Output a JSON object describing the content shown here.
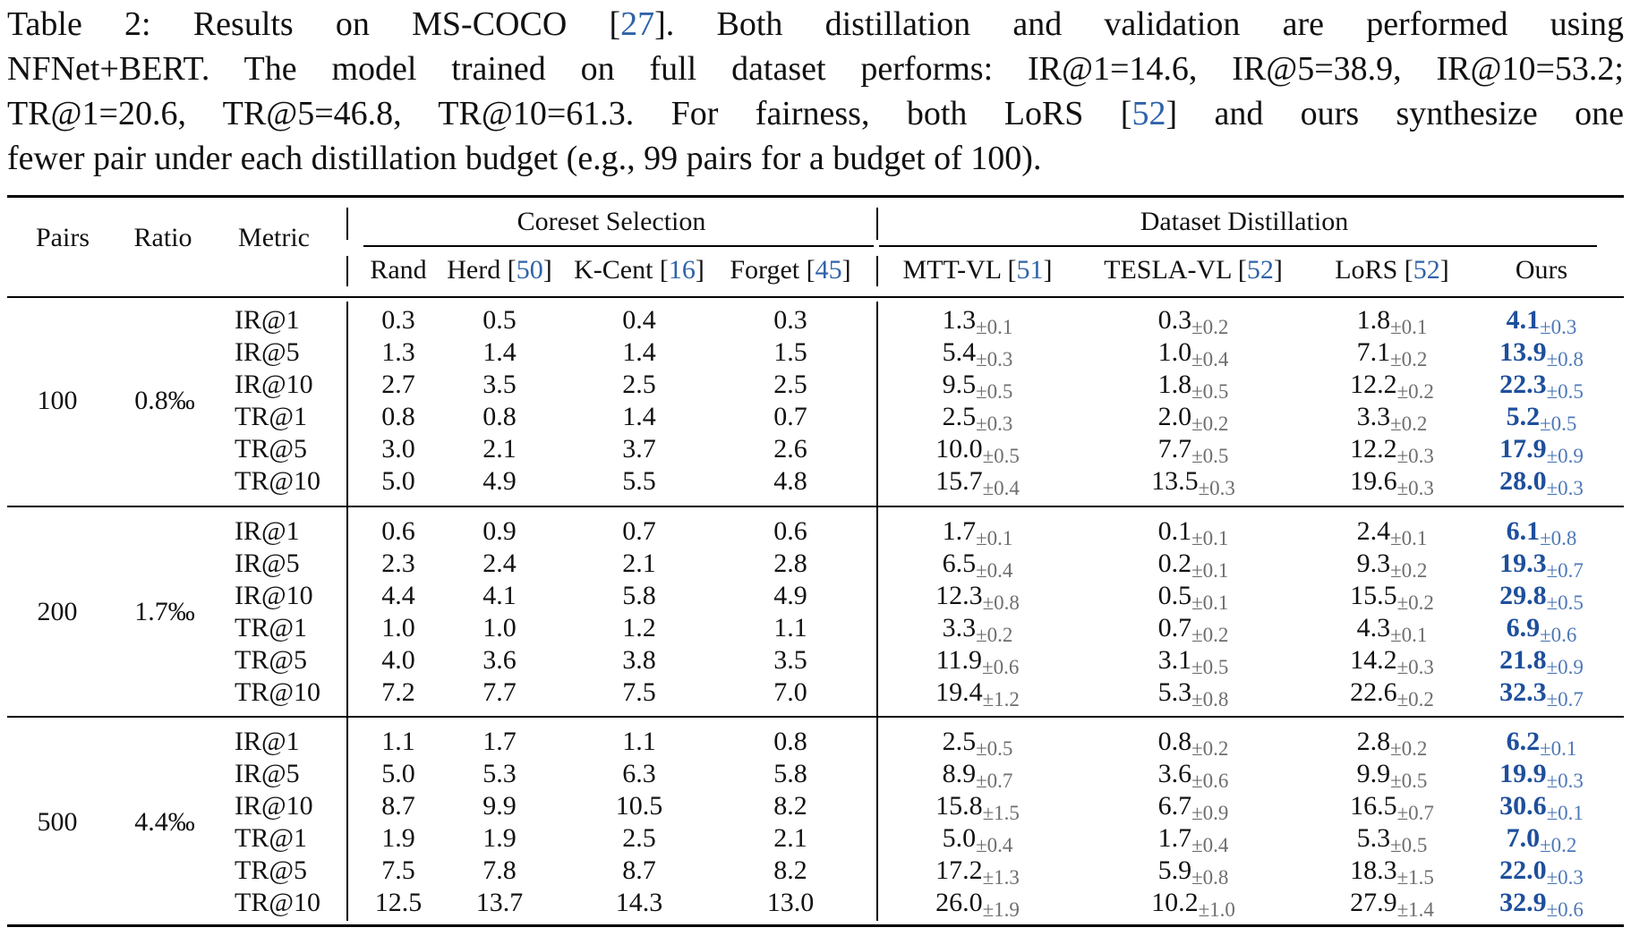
{
  "caption": {
    "line1": {
      "pre": "Table 2:  Results on MS-COCO [",
      "ref": "27",
      "post": "].  Both distillation and validation are performed using"
    },
    "line2": "NFNet+BERT. The model trained on full dataset performs: IR@1=14.6, IR@5=38.9, IR@10=53.2;",
    "line3": {
      "pre": "TR@1=20.6, TR@5=46.8, TR@10=61.3.  For fairness, both LoRS [",
      "ref": "52",
      "post": "] and ours synthesize one"
    },
    "line4": "fewer pair under each distillation budget (e.g., 99 pairs for a budget of 100)."
  },
  "headers": {
    "pairs": "Pairs",
    "ratio": "Ratio",
    "metric": "Metric",
    "coreset_group": "Coreset Selection",
    "distill_group": "Dataset Distillation",
    "columns": [
      {
        "name": "Rand",
        "ref": ""
      },
      {
        "name": "Herd ",
        "ref": "50"
      },
      {
        "name": "K-Cent ",
        "ref": "16"
      },
      {
        "name": "Forget ",
        "ref": "45"
      },
      {
        "name": "MTT-VL ",
        "ref": "51"
      },
      {
        "name": "TESLA-VL ",
        "ref": "52"
      },
      {
        "name": "LoRS ",
        "ref": "52"
      },
      {
        "name": "Ours",
        "ref": ""
      }
    ]
  },
  "groups": [
    {
      "pairs": "100",
      "ratio": "0.8‰",
      "rows": [
        {
          "metric": "IR@1",
          "rand": "0.3",
          "herd": "0.5",
          "kcent": "0.4",
          "forget": "0.3",
          "mtt": "1.3",
          "mtt_pm": "±0.1",
          "tesla": "0.3",
          "tesla_pm": "±0.2",
          "lors": "1.8",
          "lors_pm": "±0.1",
          "ours": "4.1",
          "ours_pm": "±0.3"
        },
        {
          "metric": "IR@5",
          "rand": "1.3",
          "herd": "1.4",
          "kcent": "1.4",
          "forget": "1.5",
          "mtt": "5.4",
          "mtt_pm": "±0.3",
          "tesla": "1.0",
          "tesla_pm": "±0.4",
          "lors": "7.1",
          "lors_pm": "±0.2",
          "ours": "13.9",
          "ours_pm": "±0.8"
        },
        {
          "metric": "IR@10",
          "rand": "2.7",
          "herd": "3.5",
          "kcent": "2.5",
          "forget": "2.5",
          "mtt": "9.5",
          "mtt_pm": "±0.5",
          "tesla": "1.8",
          "tesla_pm": "±0.5",
          "lors": "12.2",
          "lors_pm": "±0.2",
          "ours": "22.3",
          "ours_pm": "±0.5"
        },
        {
          "metric": "TR@1",
          "rand": "0.8",
          "herd": "0.8",
          "kcent": "1.4",
          "forget": "0.7",
          "mtt": "2.5",
          "mtt_pm": "±0.3",
          "tesla": "2.0",
          "tesla_pm": "±0.2",
          "lors": "3.3",
          "lors_pm": "±0.2",
          "ours": "5.2",
          "ours_pm": "±0.5"
        },
        {
          "metric": "TR@5",
          "rand": "3.0",
          "herd": "2.1",
          "kcent": "3.7",
          "forget": "2.6",
          "mtt": "10.0",
          "mtt_pm": "±0.5",
          "tesla": "7.7",
          "tesla_pm": "±0.5",
          "lors": "12.2",
          "lors_pm": "±0.3",
          "ours": "17.9",
          "ours_pm": "±0.9"
        },
        {
          "metric": "TR@10",
          "rand": "5.0",
          "herd": "4.9",
          "kcent": "5.5",
          "forget": "4.8",
          "mtt": "15.7",
          "mtt_pm": "±0.4",
          "tesla": "13.5",
          "tesla_pm": "±0.3",
          "lors": "19.6",
          "lors_pm": "±0.3",
          "ours": "28.0",
          "ours_pm": "±0.3"
        }
      ]
    },
    {
      "pairs": "200",
      "ratio": "1.7‰",
      "rows": [
        {
          "metric": "IR@1",
          "rand": "0.6",
          "herd": "0.9",
          "kcent": "0.7",
          "forget": "0.6",
          "mtt": "1.7",
          "mtt_pm": "±0.1",
          "tesla": "0.1",
          "tesla_pm": "±0.1",
          "lors": "2.4",
          "lors_pm": "±0.1",
          "ours": "6.1",
          "ours_pm": "±0.8"
        },
        {
          "metric": "IR@5",
          "rand": "2.3",
          "herd": "2.4",
          "kcent": "2.1",
          "forget": "2.8",
          "mtt": "6.5",
          "mtt_pm": "±0.4",
          "tesla": "0.2",
          "tesla_pm": "±0.1",
          "lors": "9.3",
          "lors_pm": "±0.2",
          "ours": "19.3",
          "ours_pm": "±0.7"
        },
        {
          "metric": "IR@10",
          "rand": "4.4",
          "herd": "4.1",
          "kcent": "5.8",
          "forget": "4.9",
          "mtt": "12.3",
          "mtt_pm": "±0.8",
          "tesla": "0.5",
          "tesla_pm": "±0.1",
          "lors": "15.5",
          "lors_pm": "±0.2",
          "ours": "29.8",
          "ours_pm": "±0.5"
        },
        {
          "metric": "TR@1",
          "rand": "1.0",
          "herd": "1.0",
          "kcent": "1.2",
          "forget": "1.1",
          "mtt": "3.3",
          "mtt_pm": "±0.2",
          "tesla": "0.7",
          "tesla_pm": "±0.2",
          "lors": "4.3",
          "lors_pm": "±0.1",
          "ours": "6.9",
          "ours_pm": "±0.6"
        },
        {
          "metric": "TR@5",
          "rand": "4.0",
          "herd": "3.6",
          "kcent": "3.8",
          "forget": "3.5",
          "mtt": "11.9",
          "mtt_pm": "±0.6",
          "tesla": "3.1",
          "tesla_pm": "±0.5",
          "lors": "14.2",
          "lors_pm": "±0.3",
          "ours": "21.8",
          "ours_pm": "±0.9"
        },
        {
          "metric": "TR@10",
          "rand": "7.2",
          "herd": "7.7",
          "kcent": "7.5",
          "forget": "7.0",
          "mtt": "19.4",
          "mtt_pm": "±1.2",
          "tesla": "5.3",
          "tesla_pm": "±0.8",
          "lors": "22.6",
          "lors_pm": "±0.2",
          "ours": "32.3",
          "ours_pm": "±0.7"
        }
      ]
    },
    {
      "pairs": "500",
      "ratio": "4.4‰",
      "rows": [
        {
          "metric": "IR@1",
          "rand": "1.1",
          "herd": "1.7",
          "kcent": "1.1",
          "forget": "0.8",
          "mtt": "2.5",
          "mtt_pm": "±0.5",
          "tesla": "0.8",
          "tesla_pm": "±0.2",
          "lors": "2.8",
          "lors_pm": "±0.2",
          "ours": "6.2",
          "ours_pm": "±0.1"
        },
        {
          "metric": "IR@5",
          "rand": "5.0",
          "herd": "5.3",
          "kcent": "6.3",
          "forget": "5.8",
          "mtt": "8.9",
          "mtt_pm": "±0.7",
          "tesla": "3.6",
          "tesla_pm": "±0.6",
          "lors": "9.9",
          "lors_pm": "±0.5",
          "ours": "19.9",
          "ours_pm": "±0.3"
        },
        {
          "metric": "IR@10",
          "rand": "8.7",
          "herd": "9.9",
          "kcent": "10.5",
          "forget": "8.2",
          "mtt": "15.8",
          "mtt_pm": "±1.5",
          "tesla": "6.7",
          "tesla_pm": "±0.9",
          "lors": "16.5",
          "lors_pm": "±0.7",
          "ours": "30.6",
          "ours_pm": "±0.1"
        },
        {
          "metric": "TR@1",
          "rand": "1.9",
          "herd": "1.9",
          "kcent": "2.5",
          "forget": "2.1",
          "mtt": "5.0",
          "mtt_pm": "±0.4",
          "tesla": "1.7",
          "tesla_pm": "±0.4",
          "lors": "5.3",
          "lors_pm": "±0.5",
          "ours": "7.0",
          "ours_pm": "±0.2"
        },
        {
          "metric": "TR@5",
          "rand": "7.5",
          "herd": "7.8",
          "kcent": "8.7",
          "forget": "8.2",
          "mtt": "17.2",
          "mtt_pm": "±1.3",
          "tesla": "5.9",
          "tesla_pm": "±0.8",
          "lors": "18.3",
          "lors_pm": "±1.5",
          "ours": "22.0",
          "ours_pm": "±0.3"
        },
        {
          "metric": "TR@10",
          "rand": "12.5",
          "herd": "13.7",
          "kcent": "14.3",
          "forget": "13.0",
          "mtt": "26.0",
          "mtt_pm": "±1.9",
          "tesla": "10.2",
          "tesla_pm": "±1.0",
          "lors": "27.9",
          "lors_pm": "±1.4",
          "ours": "32.9",
          "ours_pm": "±0.6"
        }
      ]
    }
  ]
}
